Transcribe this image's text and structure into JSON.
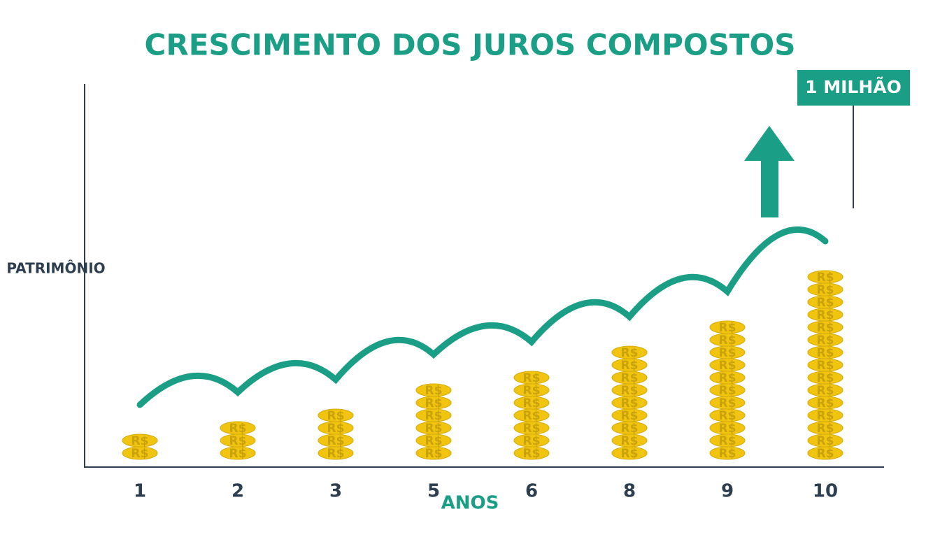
{
  "chart_data": {
    "type": "coin-stack",
    "title": "CRESCIMENTO DOS JUROS COMPOSTOS",
    "x_label": "ANOS",
    "y_label": "PATRIMÔNIO",
    "categories": [
      "1",
      "2",
      "3",
      "5",
      "6",
      "8",
      "9",
      "10"
    ],
    "values": [
      2,
      3,
      4,
      6,
      7,
      9,
      11,
      15
    ],
    "coin_label": "R$",
    "color": "#f1c40f",
    "line_color": "#1a9e85",
    "annotation": "1 MILHÃO"
  }
}
